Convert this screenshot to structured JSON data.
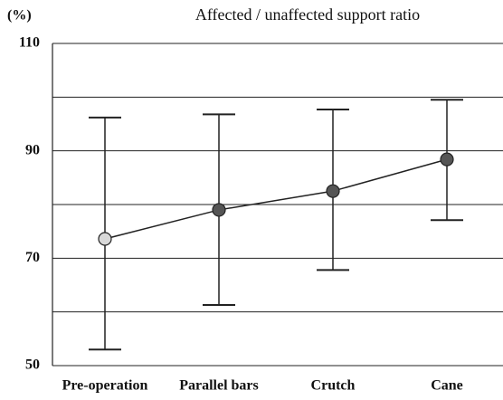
{
  "chart_data": {
    "type": "line",
    "title": "Affected / unaffected support ratio",
    "y_label": "(%)",
    "categories": [
      "Pre-operation",
      "Parallel bars",
      "Crutch",
      "Cane"
    ],
    "values": [
      73.6,
      79.0,
      82.5,
      88.4
    ],
    "error_plus": [
      22.6,
      17.8,
      15.2,
      11.1
    ],
    "error_minus": [
      20.6,
      17.7,
      14.7,
      11.3
    ],
    "color": "#222",
    "marker_colors": [
      "#d8d8d8",
      "#555555",
      "#555555",
      "#555555"
    ],
    "ylim": [
      50,
      110
    ],
    "yticks": [
      50,
      70,
      90,
      110
    ],
    "minor_yticks": [
      60,
      80,
      100
    ],
    "grid": true
  }
}
